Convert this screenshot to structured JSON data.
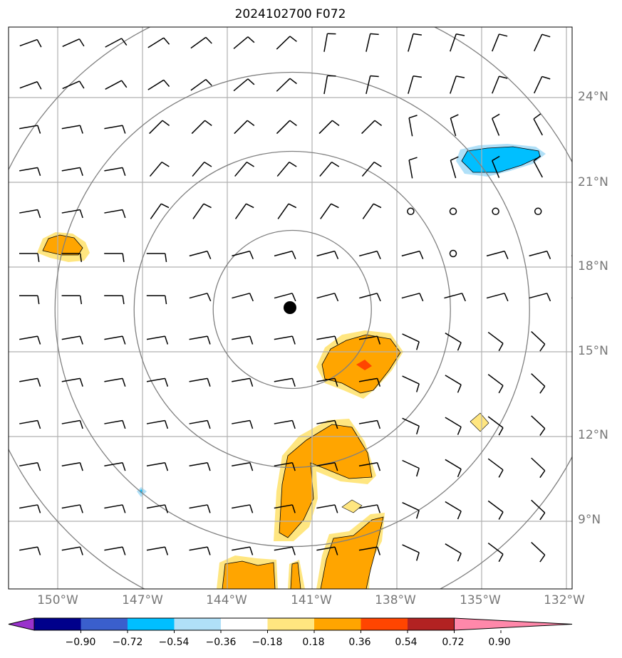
{
  "title": "2024102700 F072",
  "longitude_labels": [
    "150°W",
    "147°W",
    "144°W",
    "141°W",
    "138°W",
    "135°W",
    "132°W"
  ],
  "latitude_labels": [
    "24°N",
    "21°N",
    "18°N",
    "15°N",
    "12°N",
    "9°N"
  ],
  "colorbar": {
    "ticks": [
      "−0.90",
      "−0.72",
      "−0.54",
      "−0.36",
      "−0.18",
      "0.18",
      "0.36",
      "0.54",
      "0.72",
      "0.90"
    ],
    "colors": [
      "#9932cc",
      "#00008b",
      "#3a5fcd",
      "#00bfff",
      "#b0e0f8",
      "#ffffff",
      "#ffe680",
      "#ffa500",
      "#ff4500",
      "#b22222",
      "#ff88aa"
    ]
  },
  "storm_center": {
    "lon": -141.7,
    "lat": 16.5
  },
  "range_rings_count": 4,
  "colors": {
    "grid": "#b0b0b0",
    "rings": "#808080",
    "barbs": "#000000"
  }
}
